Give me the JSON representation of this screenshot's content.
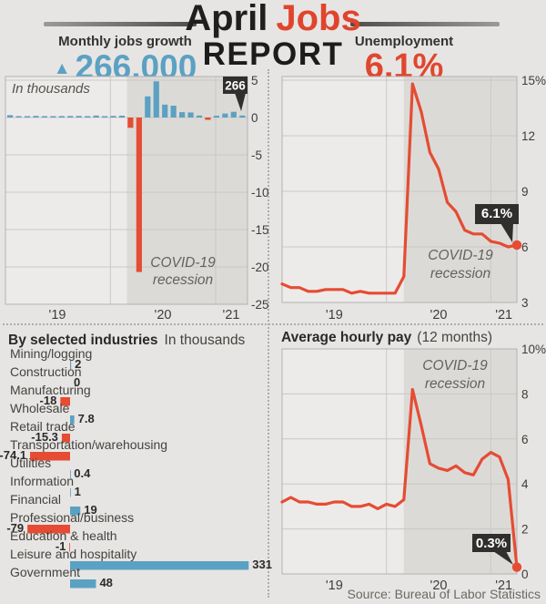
{
  "header": {
    "title_word1": "April",
    "title_word2": "Jobs",
    "title_line2": "REPORT"
  },
  "stats": {
    "jobs": {
      "label": "Monthly jobs growth",
      "arrow": "▲",
      "value": "266,000"
    },
    "unemployment": {
      "label": "Unemployment",
      "value": "6.1%"
    }
  },
  "source": "Source: Bureau of Labor Statistics",
  "colors": {
    "positive_blue": "#5ba1c3",
    "negative_red": "#e54c33",
    "line_red": "#e54c33",
    "accent_red": "#e0442c",
    "callout_bg": "#302f2d",
    "callout_text": "#ffffff",
    "plot_bg": "#edebe9",
    "recession_band": "#dcdad7",
    "grid": "#cac8c6",
    "plot_border": "#b5b3b1",
    "axis_text": "#3e3d3a",
    "muted_text": "#636260"
  },
  "chart_data": [
    {
      "id": "monthly_jobs_growth",
      "type": "bar",
      "title": "In thousands",
      "x_range": "Jan 2019 - Apr 2021, monthly",
      "x_tick_labels": [
        "'19",
        "'20",
        "'21"
      ],
      "y_tick_labels": [
        "5",
        "0",
        "-5",
        "-10",
        "-15",
        "-20",
        "-25"
      ],
      "y_ticks_millions": [
        5,
        0,
        -5,
        -10,
        -15,
        -20,
        -25
      ],
      "values_thousands": [
        312,
        56,
        153,
        216,
        85,
        182,
        194,
        207,
        208,
        185,
        261,
        184,
        214,
        251,
        -1373,
        -20679,
        2833,
        4846,
        1726,
        1583,
        716,
        680,
        264,
        -306,
        233,
        536,
        770,
        266
      ],
      "recession_label_line1": "COVID-19",
      "recession_label_line2": "recession",
      "recession_start_month_index": 14,
      "callout": "266"
    },
    {
      "id": "unemployment_rate",
      "type": "line",
      "title": "Unemployment",
      "x_range": "Jan 2019 - Apr 2021, monthly",
      "x_tick_labels": [
        "'19",
        "'20",
        "'21"
      ],
      "y_tick_labels": [
        "15%",
        "12",
        "9",
        "6",
        "3"
      ],
      "y_ticks": [
        15,
        12,
        9,
        6,
        3
      ],
      "ylim": [
        3,
        15
      ],
      "values_percent": [
        4.0,
        3.8,
        3.8,
        3.6,
        3.6,
        3.7,
        3.7,
        3.7,
        3.5,
        3.6,
        3.5,
        3.5,
        3.5,
        3.5,
        4.4,
        14.8,
        13.3,
        11.1,
        10.2,
        8.4,
        7.9,
        6.9,
        6.7,
        6.7,
        6.3,
        6.2,
        6.0,
        6.1
      ],
      "recession_label_line1": "COVID-19",
      "recession_label_line2": "recession",
      "recession_start_month_index": 14,
      "callout": "6.1%"
    },
    {
      "id": "by_selected_industries",
      "type": "bar",
      "orientation": "horizontal",
      "title": "By selected industries",
      "subtitle": "In thousands",
      "categories": [
        "Mining/logging",
        "Construction",
        "Manufacturing",
        "Wholesale",
        "Retail trade",
        "Transportation/warehousing",
        "Utilities",
        "Information",
        "Financial",
        "Professional/business",
        "Education & health",
        "Leisure and hospitality",
        "Government"
      ],
      "values": [
        2,
        0,
        -18,
        7.8,
        -15.3,
        -74.1,
        0.4,
        1,
        19,
        -79,
        -1,
        331,
        48
      ],
      "value_labels": [
        "2",
        "0",
        "-18",
        "7.8",
        "-15.3",
        "-74.1",
        "0.4",
        "1",
        "19",
        "-79",
        "-1",
        "331",
        "48"
      ]
    },
    {
      "id": "average_hourly_pay",
      "type": "line",
      "title": "Average hourly pay",
      "subtitle": "(12 months)",
      "x_range": "Jan 2019 - Apr 2021, monthly",
      "x_tick_labels": [
        "'19",
        "'20",
        "'21"
      ],
      "y_tick_labels": [
        "10%",
        "8",
        "6",
        "4",
        "2",
        "0"
      ],
      "y_ticks": [
        10,
        8,
        6,
        4,
        2,
        0
      ],
      "ylim": [
        0,
        10
      ],
      "values_percent": [
        3.2,
        3.4,
        3.2,
        3.2,
        3.1,
        3.1,
        3.2,
        3.2,
        3.0,
        3.0,
        3.1,
        2.9,
        3.1,
        3.0,
        3.3,
        8.2,
        6.6,
        4.9,
        4.7,
        4.6,
        4.8,
        4.5,
        4.4,
        5.1,
        5.4,
        5.2,
        4.2,
        0.3
      ],
      "recession_label_line1": "COVID-19",
      "recession_label_line2": "recession",
      "recession_start_month_index": 14,
      "callout": "0.3%"
    }
  ]
}
